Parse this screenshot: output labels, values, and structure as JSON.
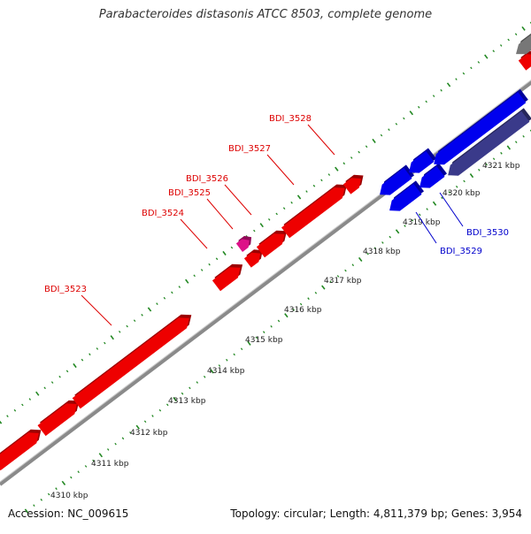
{
  "title": "Parabacteroides distasonis ATCC 8503, complete genome",
  "footer": {
    "accession": "Accession: NC_009615",
    "summary": "Topology: circular; Length: 4,811,379 bp; Genes: 3,954"
  },
  "ticks": [
    {
      "label": "4310 kbp"
    },
    {
      "label": "4311 kbp"
    },
    {
      "label": "4312 kbp"
    },
    {
      "label": "4313 kbp"
    },
    {
      "label": "4314 kbp"
    },
    {
      "label": "4315 kbp"
    },
    {
      "label": "4316 kbp"
    },
    {
      "label": "4317 kbp"
    },
    {
      "label": "4318 kbp"
    },
    {
      "label": "4319 kbp"
    },
    {
      "label": "4320 kbp"
    },
    {
      "label": "4321 kbp"
    }
  ],
  "gene_labels": [
    {
      "label": "BDI_3523",
      "color": "#dd0000"
    },
    {
      "label": "BDI_3524",
      "color": "#dd0000"
    },
    {
      "label": "BDI_3525",
      "color": "#dd0000"
    },
    {
      "label": "BDI_3526",
      "color": "#dd0000"
    },
    {
      "label": "BDI_3527",
      "color": "#dd0000"
    },
    {
      "label": "BDI_3528",
      "color": "#dd0000"
    },
    {
      "label": "BDI_3529",
      "color": "#0000cc"
    },
    {
      "label": "BDI_3530",
      "color": "#0000cc"
    }
  ],
  "colors": {
    "forward_gene": "#ee0000",
    "reverse_gene": "#0000ee",
    "pseudo_gene": "#dd1188",
    "dark_gene": "#3a3a8a",
    "backbone": "#8a8a8a",
    "tick": "#228822",
    "label_forward": "#dd0000",
    "label_reverse": "#0000cc"
  }
}
